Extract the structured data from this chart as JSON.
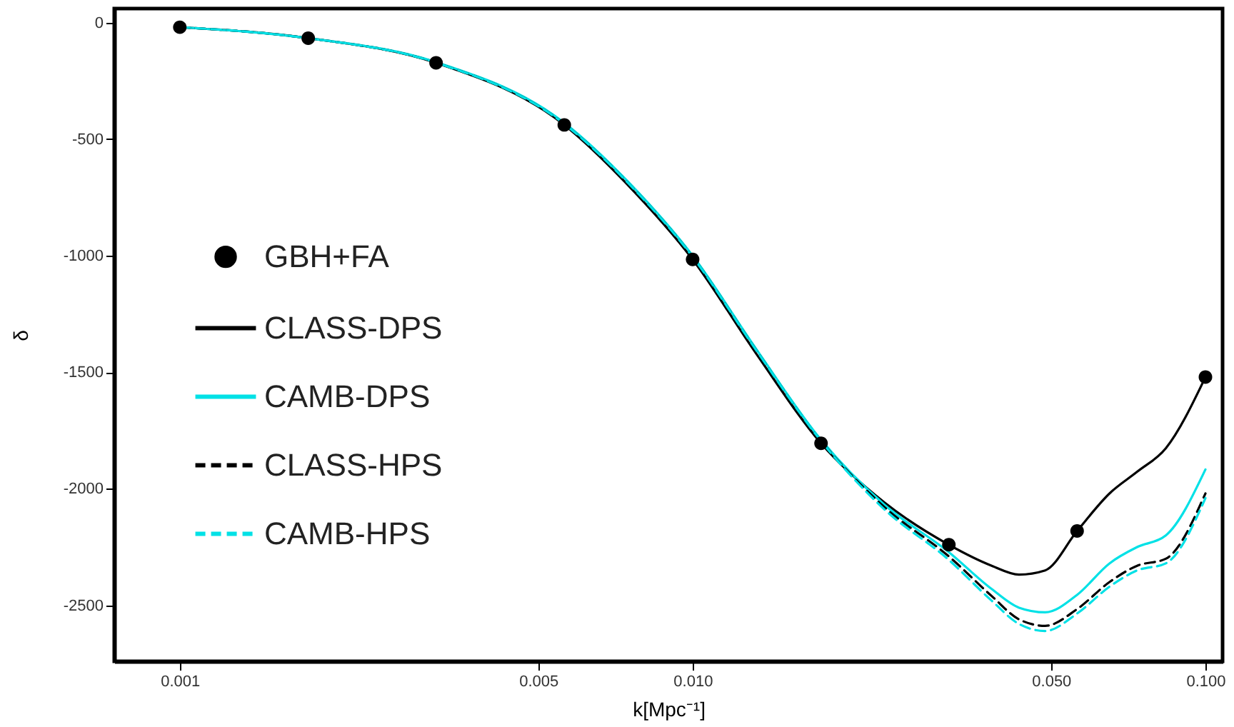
{
  "chart_data": {
    "type": "line",
    "xlabel": "k[Mpc⁻¹]",
    "ylabel": "δ",
    "log": "x",
    "xlim": [
      0.000745,
      0.108
    ],
    "ylim": [
      -2740,
      60
    ],
    "xticks": [
      {
        "value": 0.001,
        "label": "0.001"
      },
      {
        "value": 0.005,
        "label": "0.005"
      },
      {
        "value": 0.01,
        "label": "0.010"
      },
      {
        "value": 0.05,
        "label": "0.050"
      },
      {
        "value": 0.1,
        "label": "0.100"
      }
    ],
    "yticks": [
      0,
      -500,
      -1000,
      -1500,
      -2000,
      -2500
    ],
    "grid": false,
    "legend": "left",
    "x": [
      0.001,
      0.00178,
      0.00316,
      0.00562,
      0.0075,
      0.01,
      0.0133,
      0.0178,
      0.0237,
      0.0316,
      0.0383,
      0.0433,
      0.0487,
      0.0562,
      0.065,
      0.0736,
      0.0837,
      0.1
    ],
    "series": [
      {
        "name": "GBH+FA",
        "type": "scatter",
        "marker": "circle",
        "color": "#000000",
        "x": [
          0.001,
          0.00178,
          0.00316,
          0.00562,
          0.01,
          0.0178,
          0.0316,
          0.0562,
          0.1
        ],
        "values": [
          -20,
          -67,
          -173,
          -439,
          -1016,
          -1805,
          -2240,
          -2181,
          -1521
        ]
      },
      {
        "name": "CLASS-DPS",
        "type": "line",
        "line_style": "solid",
        "color": "#000000",
        "values": [
          -20,
          -67,
          -173,
          -439,
          -700,
          -1016,
          -1420,
          -1805,
          -2060,
          -2240,
          -2330,
          -2368,
          -2350,
          -2181,
          -2020,
          -1927,
          -1826,
          -1521
        ]
      },
      {
        "name": "CAMB-DPS",
        "type": "line",
        "line_style": "solid",
        "color": "#00e1e6",
        "values": [
          -20,
          -67,
          -170,
          -430,
          -685,
          -1000,
          -1400,
          -1790,
          -2070,
          -2272,
          -2430,
          -2510,
          -2530,
          -2455,
          -2320,
          -2250,
          -2200,
          -1917
        ]
      },
      {
        "name": "CLASS-HPS",
        "type": "line",
        "line_style": "dashed",
        "color": "#000000",
        "values": [
          -20,
          -67,
          -172,
          -435,
          -690,
          -1005,
          -1405,
          -1795,
          -2080,
          -2290,
          -2460,
          -2560,
          -2588,
          -2516,
          -2400,
          -2330,
          -2300,
          -2020
        ]
      },
      {
        "name": "CAMB-HPS",
        "type": "line",
        "line_style": "dashed",
        "color": "#00e1e6",
        "values": [
          -20,
          -67,
          -172,
          -435,
          -690,
          -1005,
          -1405,
          -1795,
          -2090,
          -2305,
          -2480,
          -2580,
          -2610,
          -2535,
          -2420,
          -2350,
          -2320,
          -2040
        ]
      }
    ]
  }
}
